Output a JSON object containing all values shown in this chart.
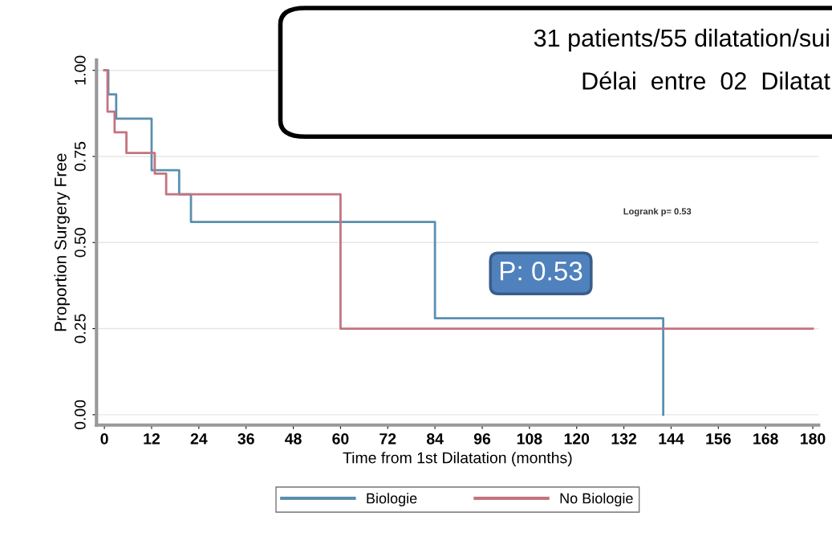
{
  "chart_data": {
    "type": "step",
    "xlabel": "Time from 1st Dilatation (months)",
    "ylabel": "Proportion Surgery Free",
    "series": [
      {
        "name": "Biologie",
        "color": "#5a8fae",
        "x": [
          0,
          1,
          3,
          12,
          19,
          22,
          84,
          142
        ],
        "values": [
          1,
          0.93,
          0.86,
          0.71,
          0.64,
          0.56,
          0.28,
          0
        ]
      },
      {
        "name": "No Biologie",
        "color": "#c4737f",
        "x": [
          0,
          0.8,
          2.6,
          5.6,
          12.8,
          15.7,
          60,
          180
        ],
        "values": [
          1,
          0.88,
          0.82,
          0.76,
          0.7,
          0.64,
          0.25,
          0.25
        ]
      }
    ],
    "xlim": [
      -2,
      181.5
    ],
    "xticks": [
      0,
      12,
      24,
      36,
      48,
      60,
      72,
      84,
      96,
      108,
      120,
      132,
      144,
      156,
      168,
      180
    ],
    "ylim": [
      -0.03,
      1.03
    ],
    "yticks": [
      {
        "value": 0,
        "label": "0.00"
      },
      {
        "value": 0.25,
        "label": "0.25"
      },
      {
        "value": 0.5,
        "label": "0.50"
      },
      {
        "value": 0.75,
        "label": "0.75"
      },
      {
        "value": 1,
        "label": "1.00"
      }
    ],
    "grid": "y",
    "legend": "bottom",
    "annotations": [
      "Logrank p= 0.53",
      "P: 0.53",
      "31 patients/55 dilatation/sui",
      "Délai  entre  02  Dilatat"
    ]
  }
}
